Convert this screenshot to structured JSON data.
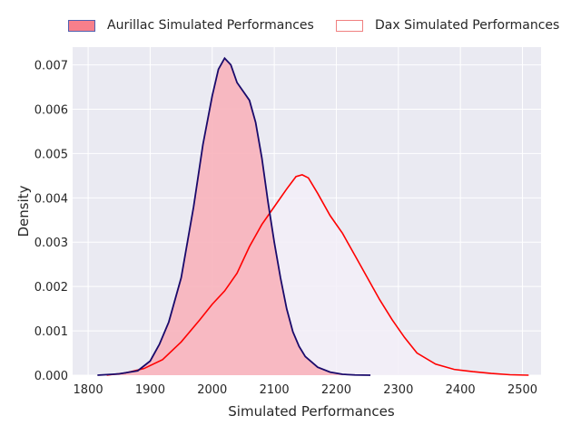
{
  "chart_data": {
    "type": "area",
    "xlabel": "Simulated Performances",
    "ylabel": "Density",
    "xlim": [
      1775,
      2530
    ],
    "ylim": [
      0,
      0.0074
    ],
    "xticks": [
      1800,
      1900,
      2000,
      2100,
      2200,
      2300,
      2400,
      2500
    ],
    "yticks": [
      0.0,
      0.001,
      0.002,
      0.003,
      0.004,
      0.005,
      0.006,
      0.007
    ],
    "ytick_labels": [
      "0.000",
      "0.001",
      "0.002",
      "0.003",
      "0.004",
      "0.005",
      "0.006",
      "0.007"
    ],
    "grid": true,
    "legend_position": "top",
    "series": [
      {
        "name": "Aurillac Simulated Performances",
        "fill": "#f8b3bb",
        "line": "#1a0a6b",
        "swatch_fill": "#f77f8b",
        "swatch_edge": "#5060b0",
        "x": [
          1815,
          1850,
          1880,
          1900,
          1915,
          1930,
          1950,
          1970,
          1985,
          2000,
          2010,
          2020,
          2030,
          2040,
          2050,
          2060,
          2070,
          2080,
          2090,
          2100,
          2110,
          2120,
          2130,
          2140,
          2150,
          2170,
          2190,
          2210,
          2230,
          2255
        ],
        "y": [
          0.0,
          3e-05,
          0.0001,
          0.00032,
          0.0007,
          0.0012,
          0.0022,
          0.0038,
          0.0052,
          0.0063,
          0.0069,
          0.00715,
          0.007,
          0.0066,
          0.0064,
          0.0062,
          0.0057,
          0.0049,
          0.0039,
          0.003,
          0.0022,
          0.0015,
          0.00098,
          0.00065,
          0.00042,
          0.00018,
          7e-05,
          2e-05,
          5e-06,
          0.0
        ]
      },
      {
        "name": "Dax Simulated Performances",
        "fill": "#f3eef8",
        "line": "#ff0000",
        "swatch_fill": "#ffffff",
        "swatch_edge": "#f08080",
        "x": [
          1830,
          1860,
          1890,
          1920,
          1950,
          1980,
          2000,
          2020,
          2040,
          2060,
          2080,
          2100,
          2120,
          2135,
          2145,
          2155,
          2170,
          2190,
          2210,
          2230,
          2250,
          2270,
          2290,
          2310,
          2330,
          2360,
          2390,
          2420,
          2450,
          2480,
          2510
        ],
        "y": [
          0.0,
          5e-05,
          0.00015,
          0.00035,
          0.00075,
          0.00125,
          0.0016,
          0.0019,
          0.0023,
          0.0029,
          0.0034,
          0.0038,
          0.0042,
          0.00448,
          0.00452,
          0.00445,
          0.0041,
          0.0036,
          0.0032,
          0.0027,
          0.0022,
          0.0017,
          0.00125,
          0.00085,
          0.0005,
          0.00025,
          0.00013,
          8e-05,
          4e-05,
          1e-05,
          0.0
        ]
      }
    ]
  }
}
